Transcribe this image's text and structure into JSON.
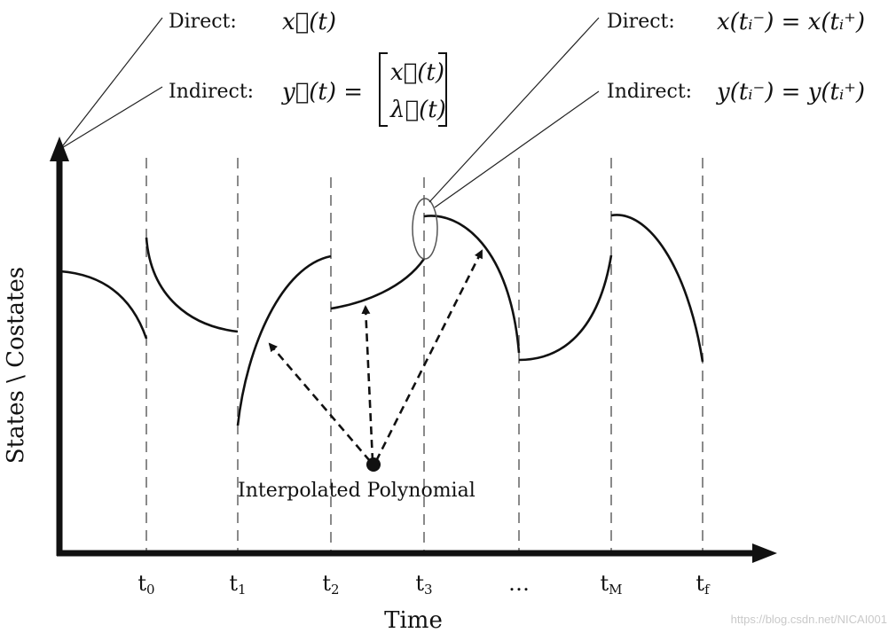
{
  "axes": {
    "x_label": "Time",
    "y_label": "States \\ Costates"
  },
  "ticks": [
    {
      "base": "t",
      "sub": "0"
    },
    {
      "base": "t",
      "sub": "1"
    },
    {
      "base": "t",
      "sub": "2"
    },
    {
      "base": "t",
      "sub": "3"
    },
    {
      "base": "…",
      "sub": ""
    },
    {
      "base": "t",
      "sub": "M"
    },
    {
      "base": "t",
      "sub": "f"
    }
  ],
  "annotations": {
    "left": {
      "direct_label": "Direct:",
      "direct_expr": "x⃗(t)",
      "indirect_label": "Indirect:",
      "indirect_expr": "y⃗(t) =",
      "indirect_matrix_top": "x⃗(t)",
      "indirect_matrix_bottom": "λ⃗(t)"
    },
    "right": {
      "direct_label": "Direct:",
      "direct_expr": "x(tᵢ⁻) = x(tᵢ⁺)",
      "indirect_label": "Indirect:",
      "indirect_expr": "y(tᵢ⁻) = y(tᵢ⁺)"
    }
  },
  "interpolation_label": "Interpolated Polynomial",
  "watermark": "https://blog.csdn.net/NICAI001"
}
